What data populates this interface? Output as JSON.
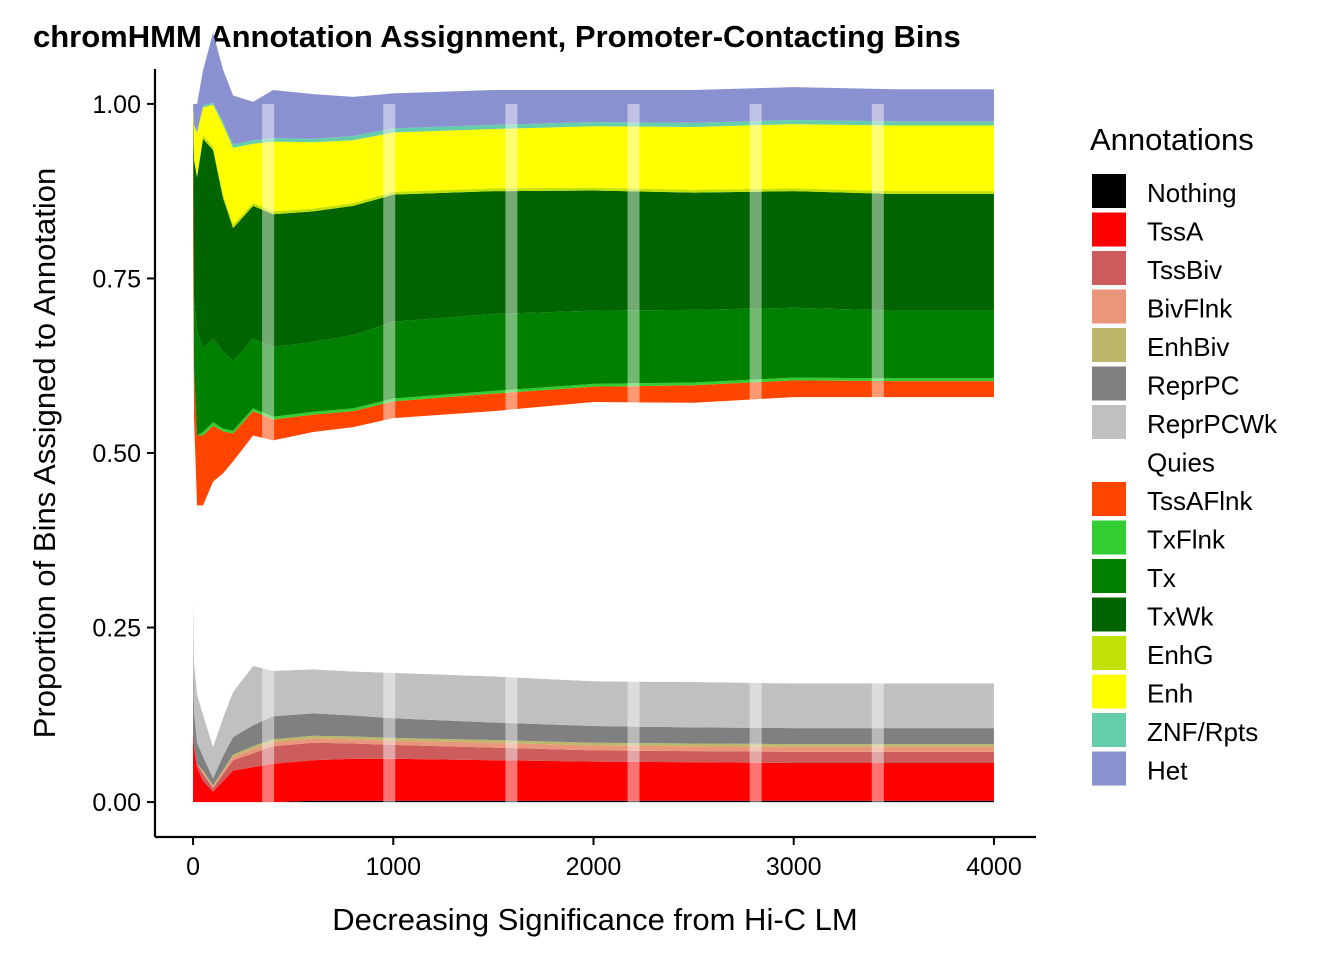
{
  "chart_data": {
    "type": "area",
    "title": "chromHMM Annotation Assignment, Promoter-Contacting Bins",
    "xlabel": "Decreasing Significance from Hi-C LM",
    "ylabel": "Proportion of Bins Assigned to Annotation",
    "xlim": [
      -190,
      4210
    ],
    "ylim": [
      -0.05,
      1.05
    ],
    "x_ticks": [
      0,
      1000,
      2000,
      3000,
      4000
    ],
    "x_tick_labels": [
      "0",
      "1000",
      "2000",
      "3000",
      "4000"
    ],
    "y_ticks": [
      0,
      0.25,
      0.5,
      0.75,
      1
    ],
    "y_tick_labels": [
      "0.00",
      "0.25",
      "0.50",
      "0.75",
      "1.00"
    ],
    "legend_title": "Annotations",
    "legend_position": "right",
    "grid": false,
    "x": [
      0,
      5,
      20,
      50,
      100,
      150,
      200,
      300,
      400,
      600,
      800,
      1000,
      1500,
      2000,
      2500,
      3000,
      3500,
      4000
    ],
    "series": [
      {
        "name": "Nothing",
        "color": "#000000",
        "values": [
          0,
          0,
          0,
          0,
          0,
          0,
          0,
          0,
          0,
          0.002,
          0.002,
          0.002,
          0.002,
          0.002,
          0.002,
          0.002,
          0.002,
          0.002
        ]
      },
      {
        "name": "TssA",
        "color": "#FF0000",
        "values": [
          0.1,
          0.08,
          0.05,
          0.03,
          0.015,
          0.03,
          0.045,
          0.05,
          0.055,
          0.058,
          0.06,
          0.06,
          0.058,
          0.056,
          0.055,
          0.054,
          0.054,
          0.054
        ]
      },
      {
        "name": "TssBiv",
        "color": "#CD5C5C",
        "values": [
          0,
          0,
          0.005,
          0.01,
          0.005,
          0.01,
          0.015,
          0.02,
          0.025,
          0.025,
          0.022,
          0.02,
          0.018,
          0.016,
          0.016,
          0.016,
          0.016,
          0.016
        ]
      },
      {
        "name": "BivFlnk",
        "color": "#E9967A",
        "values": [
          0,
          0,
          0,
          0.003,
          0.002,
          0.004,
          0.005,
          0.006,
          0.006,
          0.006,
          0.006,
          0.006,
          0.007,
          0.007,
          0.007,
          0.007,
          0.007,
          0.007
        ]
      },
      {
        "name": "EnhBiv",
        "color": "#BDB76B",
        "values": [
          0,
          0,
          0,
          0.002,
          0.002,
          0.002,
          0.003,
          0.004,
          0.004,
          0.004,
          0.004,
          0.004,
          0.004,
          0.004,
          0.004,
          0.004,
          0.004,
          0.004
        ]
      },
      {
        "name": "ReprPC",
        "color": "#808080",
        "values": [
          0.1,
          0.05,
          0.03,
          0.02,
          0.01,
          0.02,
          0.025,
          0.03,
          0.033,
          0.032,
          0.03,
          0.028,
          0.025,
          0.024,
          0.023,
          0.023,
          0.023,
          0.023
        ]
      },
      {
        "name": "ReprPCWk",
        "color": "#C0C0C0",
        "values": [
          0.1,
          0.07,
          0.07,
          0.06,
          0.045,
          0.055,
          0.065,
          0.085,
          0.065,
          0.063,
          0.063,
          0.065,
          0.066,
          0.064,
          0.065,
          0.064,
          0.064,
          0.064
        ]
      },
      {
        "name": "Quies",
        "color": "#FFFFFF",
        "values": [
          0.5,
          0.35,
          0.27,
          0.3,
          0.38,
          0.35,
          0.33,
          0.33,
          0.33,
          0.34,
          0.35,
          0.365,
          0.38,
          0.4,
          0.4,
          0.41,
          0.41,
          0.41
        ]
      },
      {
        "name": "TssAFlnk",
        "color": "#FF4500",
        "values": [
          0.2,
          0.07,
          0.1,
          0.1,
          0.08,
          0.06,
          0.04,
          0.035,
          0.03,
          0.025,
          0.023,
          0.024,
          0.025,
          0.022,
          0.025,
          0.024,
          0.023,
          0.023
        ]
      },
      {
        "name": "TxFlnk",
        "color": "#32CD32",
        "values": [
          0,
          0,
          0,
          0.005,
          0.005,
          0.004,
          0.004,
          0.004,
          0.004,
          0.004,
          0.004,
          0.004,
          0.004,
          0.004,
          0.004,
          0.004,
          0.004,
          0.004
        ]
      },
      {
        "name": "Tx",
        "color": "#008000",
        "values": [
          0,
          0.1,
          0.15,
          0.12,
          0.12,
          0.11,
          0.1,
          0.1,
          0.1,
          0.1,
          0.105,
          0.11,
          0.11,
          0.105,
          0.104,
          0.1,
          0.097,
          0.097
        ]
      },
      {
        "name": "TxWk",
        "color": "#006400",
        "values": [
          0,
          0.2,
          0.22,
          0.3,
          0.27,
          0.22,
          0.19,
          0.19,
          0.19,
          0.187,
          0.185,
          0.182,
          0.176,
          0.172,
          0.168,
          0.167,
          0.167,
          0.167
        ]
      },
      {
        "name": "EnhG",
        "color": "#C2E105",
        "values": [
          0,
          0,
          0.003,
          0.005,
          0.005,
          0.005,
          0.005,
          0.004,
          0.004,
          0.004,
          0.004,
          0.004,
          0.004,
          0.004,
          0.004,
          0.004,
          0.004,
          0.004
        ]
      },
      {
        "name": "Enh",
        "color": "#FFFF00",
        "values": [
          0,
          0.05,
          0.06,
          0.04,
          0.06,
          0.1,
          0.11,
          0.085,
          0.1,
          0.095,
          0.09,
          0.085,
          0.085,
          0.088,
          0.09,
          0.092,
          0.094,
          0.094
        ]
      },
      {
        "name": "ZNF/Rpts",
        "color": "#66CDAA",
        "values": [
          0,
          0,
          0.002,
          0.003,
          0.003,
          0.004,
          0.005,
          0.005,
          0.005,
          0.005,
          0.006,
          0.006,
          0.006,
          0.006,
          0.006,
          0.006,
          0.006,
          0.006
        ]
      },
      {
        "name": "Het",
        "color": "#8A91D0",
        "values": [
          0,
          0.03,
          0.04,
          0.05,
          0.1,
          0.075,
          0.07,
          0.055,
          0.069,
          0.064,
          0.056,
          0.05,
          0.05,
          0.046,
          0.047,
          0.047,
          0.046,
          0.046
        ]
      }
    ],
    "highlight_bands": [
      375,
      980,
      1590,
      2200,
      2810,
      3420
    ]
  }
}
